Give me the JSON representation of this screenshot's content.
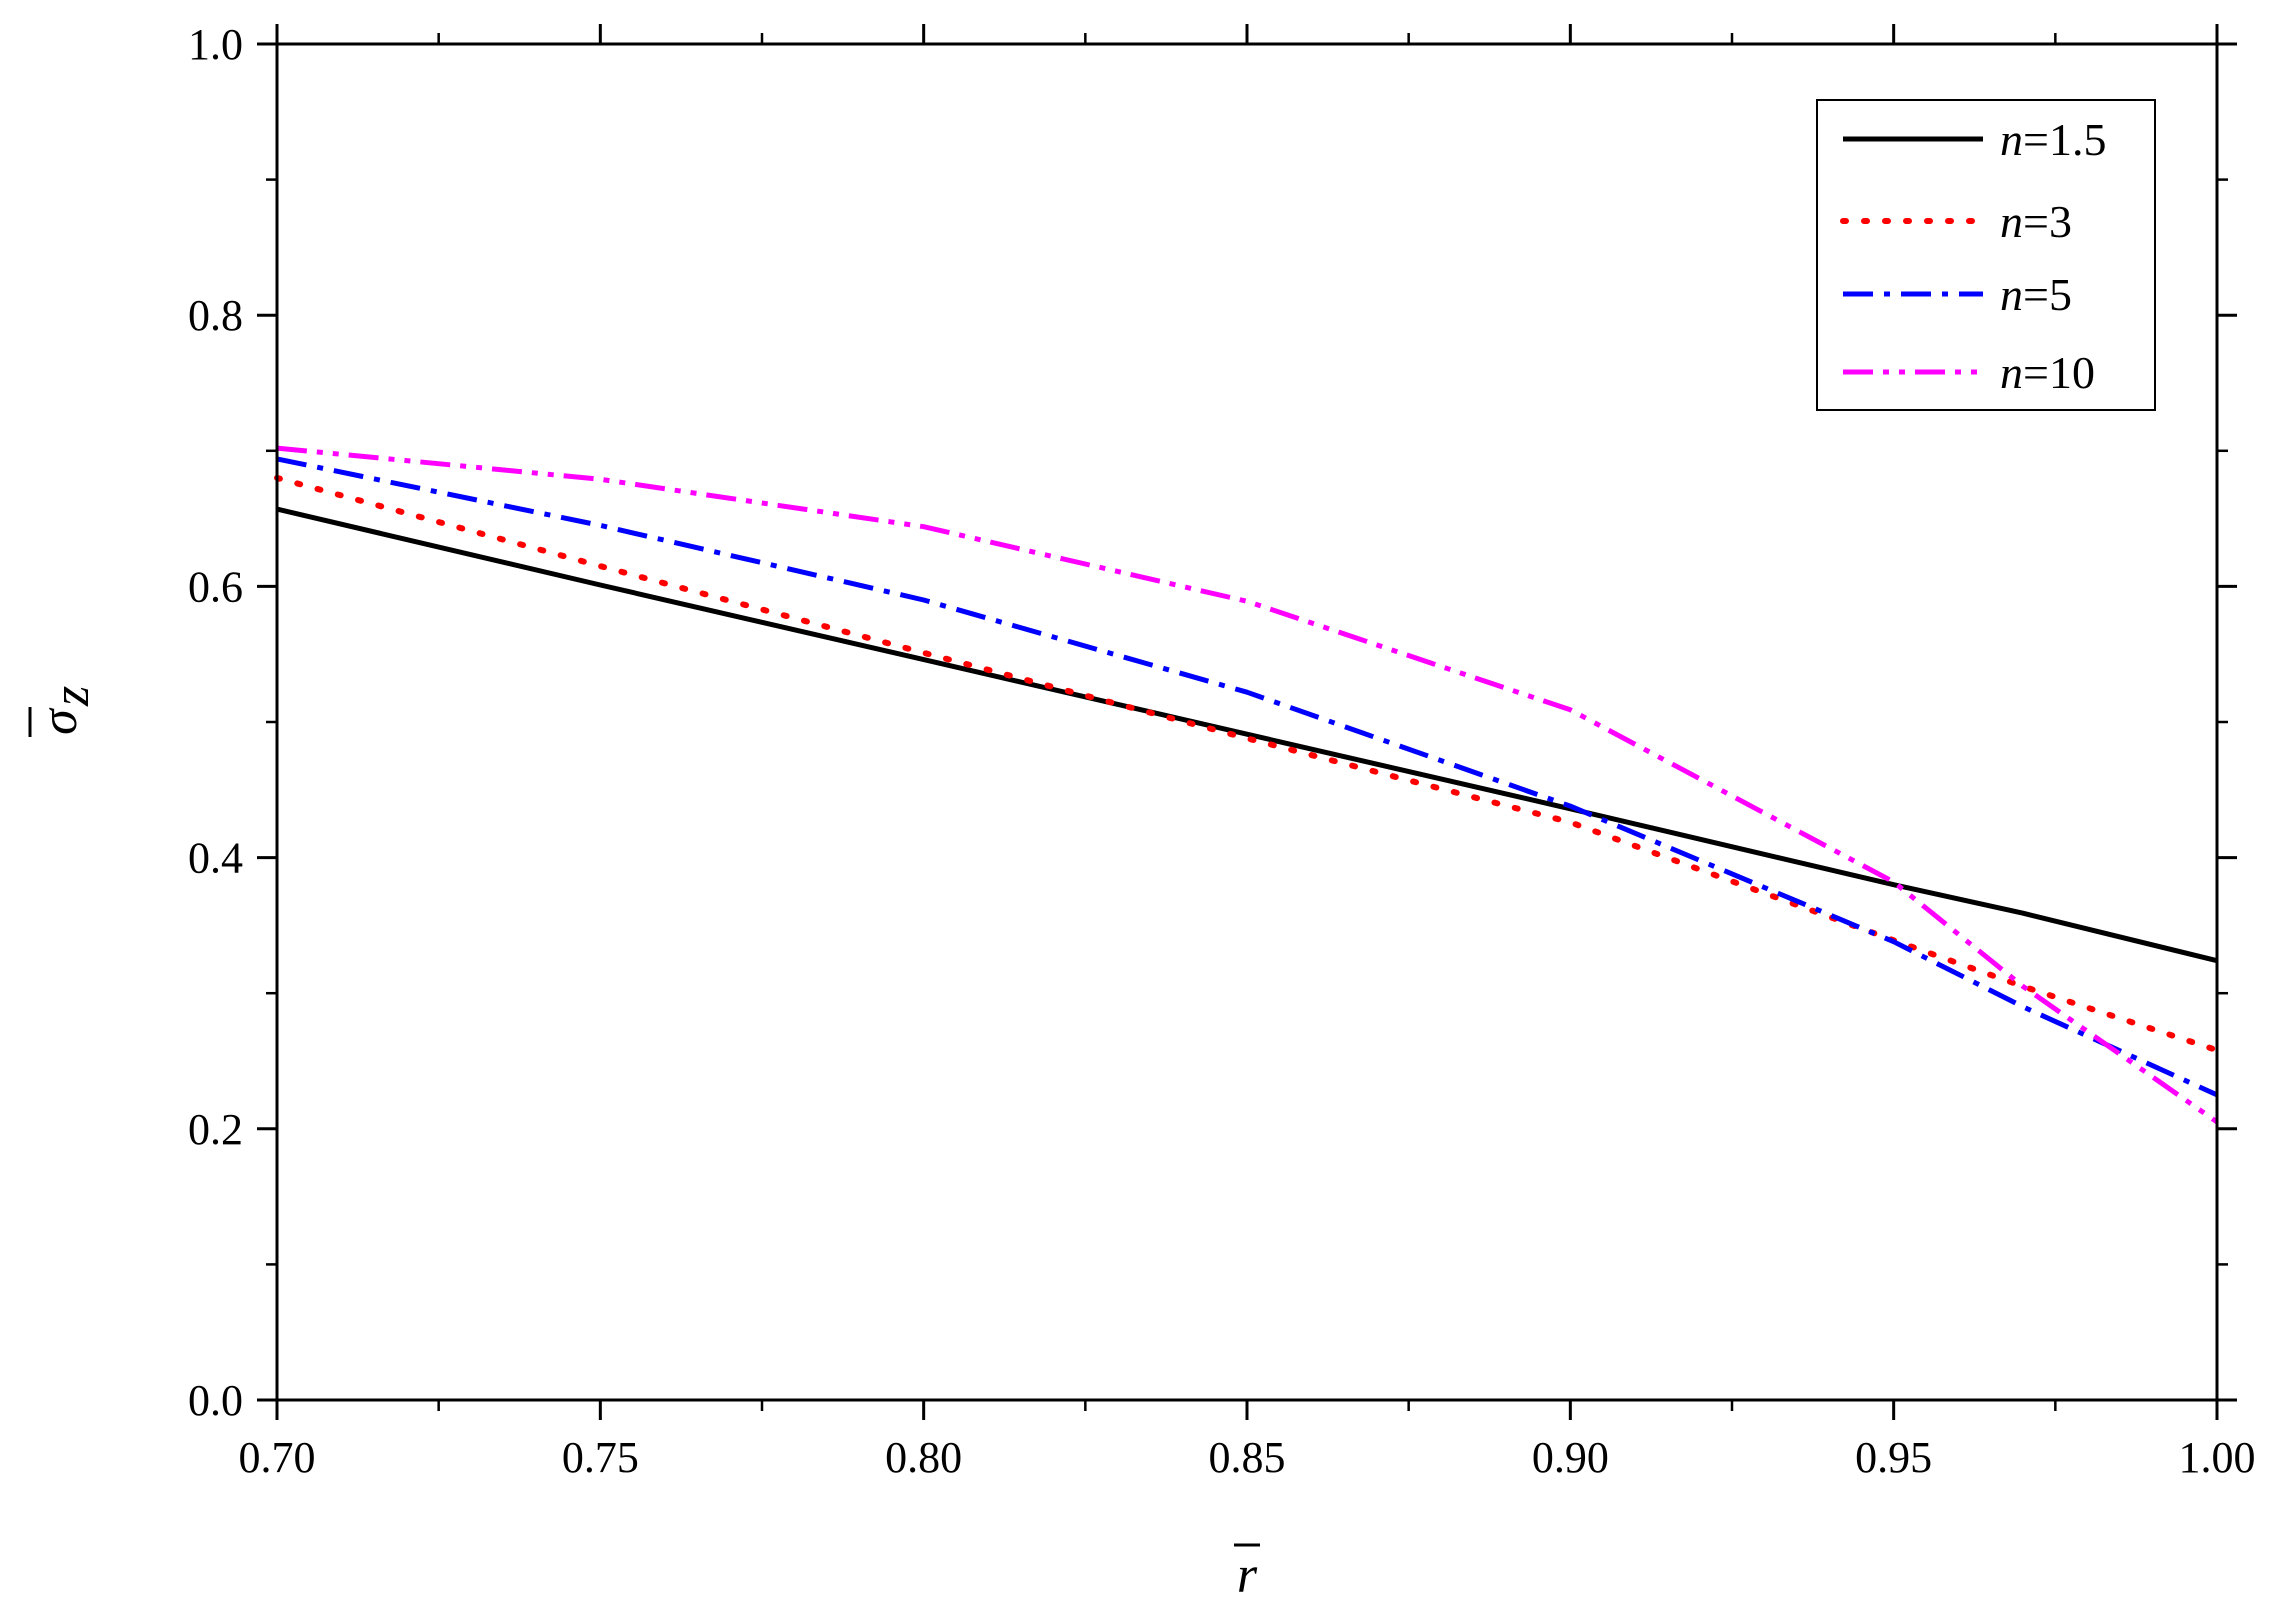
{
  "chart_data": {
    "type": "line",
    "xlabel": "r",
    "ylabel": "σ",
    "ylabel_sub": "z",
    "xlim": [
      0.7,
      1.0
    ],
    "ylim": [
      0.0,
      1.0
    ],
    "xticks": [
      "0.70",
      "0.75",
      "0.80",
      "0.85",
      "0.90",
      "0.95",
      "1.00"
    ],
    "yticks": [
      "0.0",
      "0.2",
      "0.4",
      "0.6",
      "0.8",
      "1.0"
    ],
    "grid": false,
    "legend_position": "top-right",
    "x": [
      0.7,
      0.75,
      0.8,
      0.85,
      0.9,
      0.95,
      0.97,
      1.0
    ],
    "series": [
      {
        "name": "n=1.5",
        "name_var": "n",
        "name_val": "=1.5",
        "color": "#000000",
        "dash": "solid",
        "values": [
          0.657,
          0.601,
          0.546,
          0.491,
          0.436,
          0.38,
          0.359,
          0.324
        ]
      },
      {
        "name": "n=3",
        "name_var": "n",
        "name_val": "=3",
        "color": "#ff0000",
        "dash": "dot",
        "values": [
          0.68,
          0.615,
          0.551,
          0.488,
          0.426,
          0.339,
          0.305,
          0.258
        ]
      },
      {
        "name": "n=5",
        "name_var": "n",
        "name_val": "=5",
        "color": "#0000ff",
        "dash": "dashdot",
        "values": [
          0.694,
          0.645,
          0.59,
          0.522,
          0.438,
          0.338,
          0.29,
          0.225
        ]
      },
      {
        "name": "n=10",
        "name_var": "n",
        "name_val": "=10",
        "color": "#ff00ff",
        "dash": "dashdotdot",
        "values": [
          0.702,
          0.679,
          0.644,
          0.589,
          0.509,
          0.382,
          0.305,
          0.205
        ]
      }
    ]
  }
}
